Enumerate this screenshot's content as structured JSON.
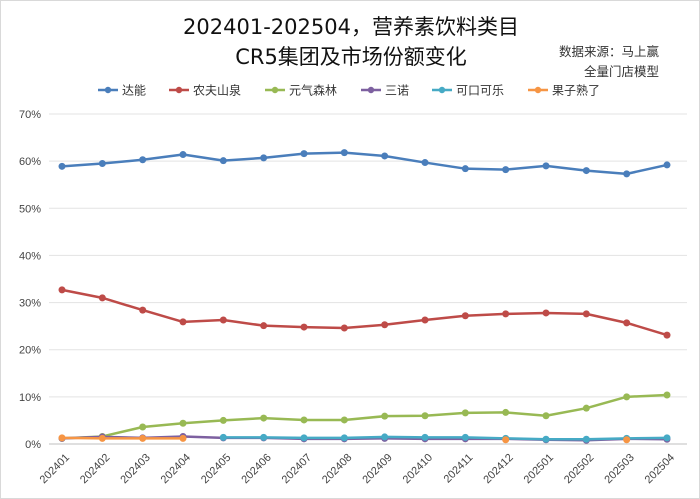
{
  "chart_data": {
    "type": "line",
    "title": [
      "202401-202504，营养素饮料类目",
      "CR5集团及市场份额变化"
    ],
    "source_note": [
      "数据来源：马上赢",
      "全量门店模型"
    ],
    "categories": [
      "202401",
      "202402",
      "202403",
      "202404",
      "202405",
      "202406",
      "202407",
      "202408",
      "202409",
      "202410",
      "202411",
      "202412",
      "202501",
      "202502",
      "202503",
      "202504"
    ],
    "ylim": [
      0,
      70
    ],
    "yticks": [
      "0%",
      "10%",
      "20%",
      "30%",
      "40%",
      "50%",
      "60%",
      "70%"
    ],
    "grid": true,
    "legend": "top",
    "series": [
      {
        "name": "达能",
        "color": "#4a7ebb",
        "values": [
          58.9,
          59.5,
          60.3,
          61.4,
          60.1,
          60.7,
          61.6,
          61.8,
          61.1,
          59.7,
          58.4,
          58.2,
          59.0,
          58.0,
          57.3,
          59.2
        ]
      },
      {
        "name": "农夫山泉",
        "color": "#be4b48",
        "values": [
          32.7,
          31.0,
          28.4,
          25.9,
          26.3,
          25.1,
          24.8,
          24.6,
          25.3,
          26.3,
          27.2,
          27.6,
          27.8,
          27.6,
          25.7,
          23.1
        ]
      },
      {
        "name": "元气森林",
        "color": "#98b954",
        "values": [
          1.2,
          1.6,
          3.6,
          4.4,
          5.0,
          5.5,
          5.1,
          5.1,
          5.9,
          6.0,
          6.6,
          6.7,
          6.0,
          7.6,
          10.0,
          10.4
        ]
      },
      {
        "name": "三诺",
        "color": "#7d60a0",
        "values": [
          1.2,
          1.5,
          1.3,
          1.6,
          1.3,
          1.3,
          1.1,
          1.1,
          1.2,
          1.1,
          1.1,
          1.1,
          0.9,
          0.8,
          1.1,
          1.0
        ]
      },
      {
        "name": "可口可乐",
        "color": "#46aac5",
        "values": [
          null,
          null,
          null,
          null,
          1.4,
          1.4,
          1.3,
          1.3,
          1.5,
          1.4,
          1.4,
          1.2,
          1.0,
          1.0,
          1.2,
          1.3
        ]
      },
      {
        "name": "果子熟了",
        "color": "#f69544",
        "values": [
          1.3,
          1.2,
          1.2,
          1.2,
          null,
          null,
          null,
          null,
          null,
          null,
          null,
          0.9,
          null,
          null,
          0.9,
          null
        ]
      }
    ]
  }
}
